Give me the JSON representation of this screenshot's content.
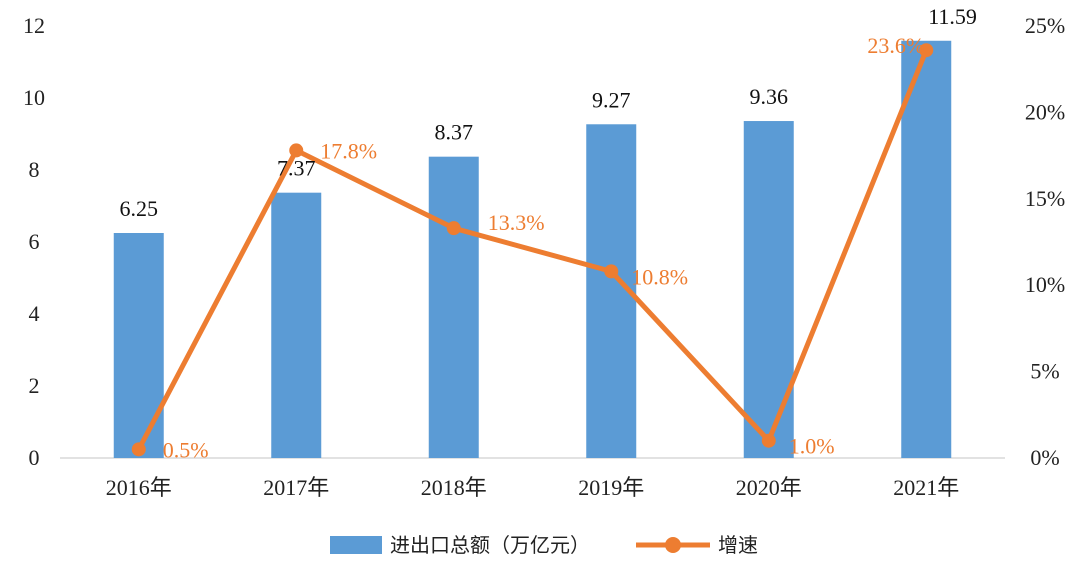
{
  "chart_data": {
    "type": "bar",
    "categories": [
      "2016年",
      "2017年",
      "2018年",
      "2019年",
      "2020年",
      "2021年"
    ],
    "series": [
      {
        "name": "进出口总额（万亿元）",
        "kind": "bar",
        "axis": "left",
        "values": [
          6.25,
          7.37,
          8.37,
          9.27,
          9.36,
          11.59
        ],
        "labels": [
          "6.25",
          "7.37",
          "8.37",
          "9.27",
          "9.36",
          "11.59"
        ],
        "color": "#5B9BD5"
      },
      {
        "name": "增速",
        "kind": "line",
        "axis": "right",
        "values": [
          0.5,
          17.8,
          13.3,
          10.8,
          1.0,
          23.6
        ],
        "labels": [
          "0.5%",
          "17.8%",
          "13.3%",
          "10.8%",
          "1.0%",
          "23.6%"
        ],
        "color": "#ED7D31"
      }
    ],
    "y_left": {
      "min": 0,
      "max": 12,
      "ticks": [
        "0",
        "2",
        "4",
        "6",
        "8",
        "10",
        "12"
      ],
      "tick_values": [
        0,
        2,
        4,
        6,
        8,
        10,
        12
      ]
    },
    "y_right": {
      "min": 0,
      "max": 25,
      "ticks": [
        "0%",
        "5%",
        "10%",
        "15%",
        "20%",
        "25%"
      ],
      "tick_values": [
        0,
        5,
        10,
        15,
        20,
        25
      ]
    },
    "title": "",
    "xlabel": "",
    "ylabel": "",
    "legend_position": "bottom-center",
    "grid": false
  }
}
